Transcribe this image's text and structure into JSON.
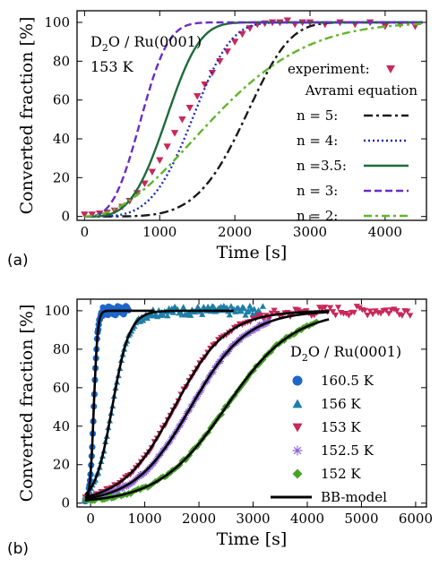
{
  "chart_data": [
    {
      "panel_label": "(a)",
      "type": "line",
      "xlabel": "Time [s]",
      "ylabel": "Converted fraction [%]",
      "xlim": [
        -100,
        4550
      ],
      "ylim": [
        -2,
        106
      ],
      "xticks": [
        0,
        1000,
        2000,
        3000,
        4000
      ],
      "yticks": [
        0,
        20,
        40,
        60,
        80,
        100
      ],
      "annotation_lines": [
        "D2O / Ru(0001)",
        "153 K"
      ],
      "legend_title": "Avrami equation",
      "legend_position": "right",
      "series": [
        {
          "name": "experiment:",
          "kind": "marker",
          "marker": "triangle-down",
          "color": "#c8285a",
          "x": [
            0,
            100,
            200,
            300,
            400,
            500,
            600,
            700,
            800,
            900,
            1000,
            1100,
            1200,
            1300,
            1400,
            1500,
            1600,
            1700,
            1800,
            1900,
            2000,
            2100,
            2200,
            2300,
            2400,
            2500,
            2600,
            2700,
            2800,
            2900,
            3000,
            3200,
            3400,
            3600,
            3800,
            4000,
            4200,
            4400
          ],
          "y": [
            1,
            1,
            1.5,
            2,
            3,
            5,
            8,
            12,
            17,
            23,
            29,
            36,
            43,
            50,
            56,
            62,
            68,
            74,
            80,
            85,
            90,
            94,
            97,
            99,
            99.5,
            100,
            100,
            101,
            99,
            100,
            100,
            99,
            100,
            99,
            100,
            98,
            99,
            98
          ]
        },
        {
          "name": "n = 5:",
          "kind": "line",
          "color": "#1a1a1a",
          "dash": "10,4,3,4",
          "n": 5,
          "k": 1.6e-17
        },
        {
          "name": "n = 4:",
          "kind": "line",
          "color": "#1c2ab8",
          "dash": "2,3",
          "n": 4,
          "k": 1.65e-13
        },
        {
          "name": "n =3.5:",
          "kind": "line",
          "color": "#1e6b3a",
          "dash": "none",
          "n": 3.5,
          "k": 1.65e-11
        },
        {
          "name": "n = 3:",
          "kind": "line",
          "color": "#6a2cc8",
          "dash": "8,4",
          "n": 3,
          "k": 1.65e-09
        },
        {
          "name": "n = 2:",
          "kind": "line",
          "color": "#5fb52a",
          "dash": "9,4,3,4",
          "n": 2,
          "k": 2.4e-07
        }
      ]
    },
    {
      "panel_label": "(b)",
      "type": "line",
      "xlabel": "Time [s]",
      "ylabel": "Converted fraction [%]",
      "xlim": [
        -250,
        6200
      ],
      "ylim": [
        -2,
        106
      ],
      "xticks": [
        0,
        1000,
        2000,
        3000,
        4000,
        5000,
        6000
      ],
      "yticks": [
        0,
        20,
        40,
        60,
        80,
        100
      ],
      "annotation_lines": [
        "D2O / Ru(0001)"
      ],
      "legend_position": "right",
      "series": [
        {
          "name": "160.5 K",
          "marker": "circle",
          "color": "#1f66c9",
          "t_half": 60,
          "width": 35,
          "t_end": 700
        },
        {
          "name": "156 K",
          "marker": "triangle-up",
          "color": "#1f7fa8",
          "t_half": 400,
          "width": 160,
          "t_end": 3200
        },
        {
          "name": "153 K",
          "marker": "triangle-down",
          "color": "#c8285a",
          "t_half": 1550,
          "width": 480,
          "t_end": 5900
        },
        {
          "name": "152.5 K",
          "marker": "asterisk",
          "color": "#8e66d6",
          "t_half": 1850,
          "width": 520,
          "t_end": 3300
        },
        {
          "name": "152 K",
          "marker": "diamond",
          "color": "#4aa12a",
          "t_half": 2500,
          "width": 620,
          "t_end": 4200
        },
        {
          "name": "BB-model",
          "marker": "line",
          "color": "#000000"
        }
      ]
    }
  ]
}
